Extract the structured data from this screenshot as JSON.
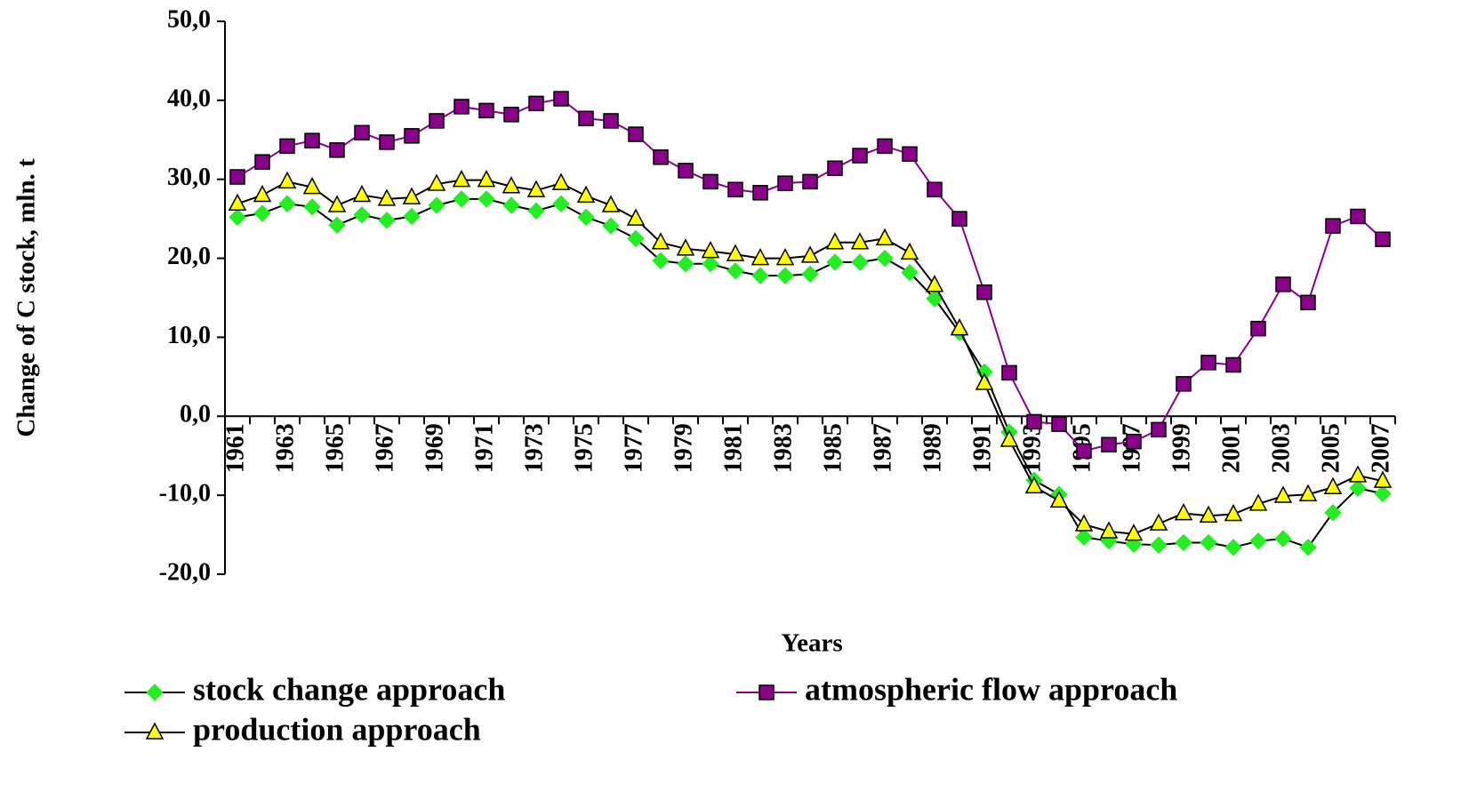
{
  "chart_data": {
    "type": "line",
    "x_label": "Years",
    "y_label": "Change of C stock, mln. t",
    "categories": [
      "1961",
      null,
      "1963",
      null,
      "1965",
      null,
      "1967",
      null,
      "1969",
      null,
      "1971",
      null,
      "1973",
      null,
      "1975",
      null,
      "1977",
      null,
      "1979",
      null,
      "1981",
      null,
      "1983",
      null,
      "1985",
      null,
      "1987",
      null,
      "1989",
      null,
      "1991",
      null,
      "1993",
      null,
      "1995",
      null,
      "1997",
      null,
      "1999",
      null,
      "2001",
      null,
      "2003",
      null,
      "2005",
      null,
      "2007"
    ],
    "ylim": [
      -20,
      50
    ],
    "yticks": [
      {
        "value": -20,
        "label": "-20,0"
      },
      {
        "value": -10,
        "label": "-10,0"
      },
      {
        "value": 0,
        "label": "0,0"
      },
      {
        "value": 10,
        "label": "10,0"
      },
      {
        "value": 20,
        "label": "20,0"
      },
      {
        "value": 30,
        "label": "30,0"
      },
      {
        "value": 40,
        "label": "40,0"
      },
      {
        "value": 50,
        "label": "50,0"
      }
    ],
    "grid": false,
    "series": [
      {
        "name": "stock change approach",
        "color": "#22ee22",
        "line_color": "#000000",
        "marker": "diamond",
        "values": [
          25.2,
          25.7,
          26.9,
          26.5,
          24.2,
          25.5,
          24.8,
          25.3,
          26.7,
          27.5,
          27.5,
          26.7,
          26.0,
          26.9,
          25.2,
          24.1,
          22.5,
          19.7,
          19.3,
          19.3,
          18.4,
          17.8,
          17.8,
          18.0,
          19.5,
          19.5,
          20.0,
          18.2,
          14.9,
          10.6,
          5.6,
          -2.0,
          -8.1,
          -9.9,
          -15.3,
          -15.8,
          -16.2,
          -16.3,
          -16.0,
          -16.0,
          -16.6,
          -15.8,
          -15.5,
          -16.6,
          -12.2,
          -9.1,
          -9.8
        ]
      },
      {
        "name": "atmospheric flow approach",
        "color": "#8b008b",
        "line_color": "#8b008b",
        "marker": "square",
        "values": [
          30.3,
          32.2,
          34.2,
          34.9,
          33.7,
          35.9,
          34.7,
          35.5,
          37.4,
          39.2,
          38.7,
          38.2,
          39.6,
          40.2,
          37.7,
          37.4,
          35.7,
          32.8,
          31.1,
          29.7,
          28.7,
          28.3,
          29.5,
          29.7,
          31.4,
          33.0,
          34.2,
          33.2,
          28.7,
          25.0,
          15.7,
          5.5,
          -0.7,
          -1.0,
          -4.4,
          -3.6,
          -3.2,
          -1.7,
          4.1,
          6.8,
          6.5,
          11.1,
          16.7,
          14.4,
          24.1,
          25.3,
          22.4
        ]
      },
      {
        "name": "production approach",
        "color": "#ffff00",
        "line_color": "#000000",
        "marker": "triangle",
        "values": [
          26.9,
          28.0,
          29.7,
          29.0,
          26.7,
          28.0,
          27.5,
          27.7,
          29.4,
          29.9,
          29.9,
          29.1,
          28.6,
          29.5,
          27.9,
          26.7,
          25.0,
          22.0,
          21.2,
          20.9,
          20.5,
          20.0,
          20.0,
          20.3,
          22.0,
          22.0,
          22.5,
          20.7,
          16.6,
          11.1,
          4.2,
          -3.0,
          -8.9,
          -10.7,
          -13.7,
          -14.6,
          -14.9,
          -13.6,
          -12.3,
          -12.6,
          -12.4,
          -11.1,
          -10.1,
          -9.9,
          -9.0,
          -7.5,
          -8.2
        ]
      }
    ]
  }
}
